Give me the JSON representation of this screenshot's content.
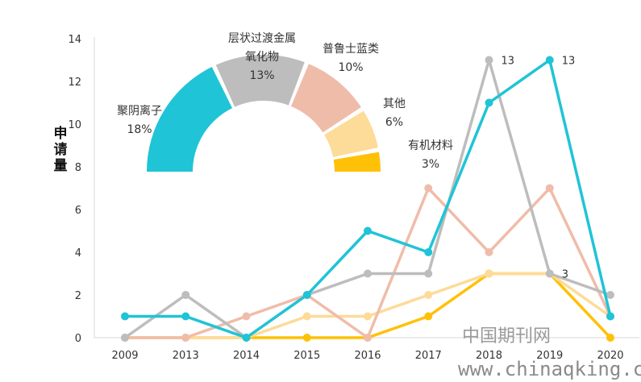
{
  "chart_data": [
    {
      "type": "line",
      "ylabel": "申请量",
      "ylim": [
        0,
        14
      ],
      "yticks": [
        0,
        2,
        4,
        6,
        8,
        10,
        12,
        14
      ],
      "categories": [
        "2009",
        "2013",
        "2014",
        "2015",
        "2016",
        "2017",
        "2018",
        "2019",
        "2020"
      ],
      "grid": false,
      "series": [
        {
          "color": "#1FC4D6",
          "values": [
            1,
            1,
            0,
            2,
            5,
            4,
            11,
            13,
            1
          ]
        },
        {
          "color": "#BDBDBD",
          "values": [
            0,
            2,
            0,
            2,
            3,
            3,
            13,
            3,
            2
          ]
        },
        {
          "color": "#F0BCAA",
          "values": [
            0,
            0,
            1,
            2,
            0,
            7,
            4,
            7,
            1
          ]
        },
        {
          "color": "#FDDB98",
          "values": [
            0,
            0,
            0,
            1,
            1,
            2,
            3,
            3,
            1
          ]
        },
        {
          "color": "#FFC107",
          "values": [
            0,
            0,
            0,
            0,
            0,
            1,
            3,
            3,
            0
          ]
        }
      ],
      "data_labels": [
        {
          "series": 1,
          "index": 6,
          "text": "13"
        },
        {
          "series": 0,
          "index": 7,
          "text": "13"
        },
        {
          "series": 1,
          "index": 7,
          "text": "3"
        }
      ]
    },
    {
      "type": "pie",
      "style": "half-donut",
      "slices": [
        {
          "lines": [
            "聚阴离子",
            "18%"
          ],
          "value": 18,
          "color": "#1FC4D6"
        },
        {
          "lines": [
            "层状过渡金属",
            "氧化物",
            "13%"
          ],
          "value": 13,
          "color": "#BDBDBD"
        },
        {
          "lines": [
            "普鲁士蓝类",
            "10%"
          ],
          "value": 10,
          "color": "#F0BCAA"
        },
        {
          "lines": [
            "其他",
            "6%"
          ],
          "value": 6,
          "color": "#FDDB98"
        },
        {
          "lines": [
            "有机材料",
            "3%"
          ],
          "value": 3,
          "color": "#FFC107"
        }
      ]
    }
  ],
  "watermark": {
    "line1": "中国期刊网",
    "line2": "www.chinaqking.com"
  }
}
